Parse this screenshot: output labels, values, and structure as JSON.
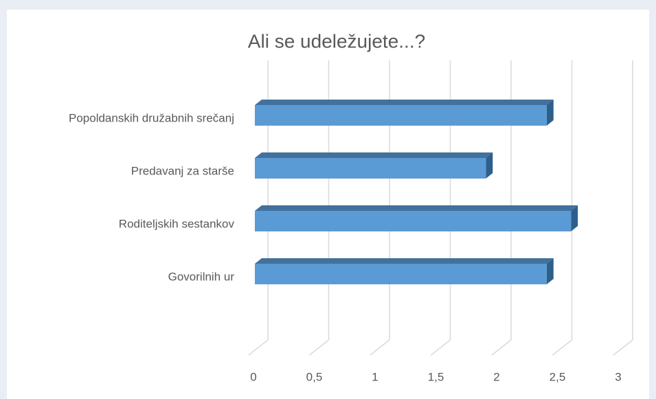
{
  "chart_data": {
    "type": "bar3d_horizontal",
    "title": "Ali se udeležujete...?",
    "categories": [
      "Popoldanskih družabnih srečanj",
      "Predavanj za starše",
      "Roditeljskih sestankov",
      "Govorilnih ur"
    ],
    "values": [
      2.4,
      1.9,
      2.6,
      2.4
    ],
    "color": "#5b9bd5",
    "xlim": [
      0,
      3
    ],
    "xticks": [
      0,
      {
        "value": 0.5,
        "label": "0,5"
      },
      1,
      {
        "value": 1.5,
        "label": "1,5"
      },
      2,
      {
        "value": 2.5,
        "label": "2,5"
      },
      3
    ],
    "grid": true
  }
}
